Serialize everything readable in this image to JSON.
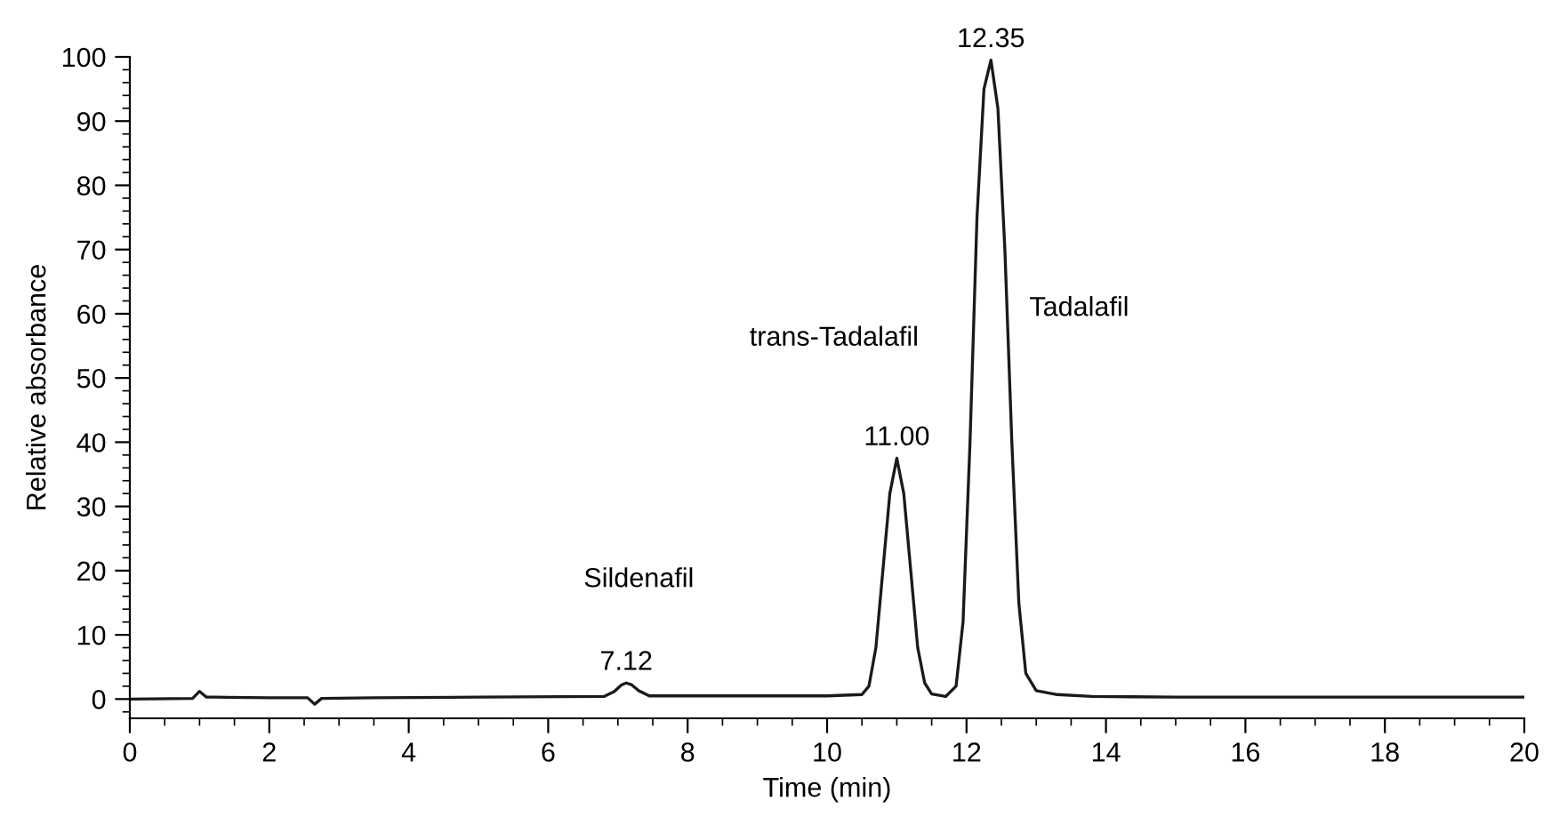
{
  "chart_data": {
    "type": "line",
    "xlabel": "Time (min)",
    "ylabel": "Relative absorbance",
    "xlim": [
      0,
      20
    ],
    "ylim": [
      -3,
      100
    ],
    "xticks": [
      0,
      2,
      4,
      6,
      8,
      10,
      12,
      14,
      16,
      18,
      20
    ],
    "yticks": [
      0,
      10,
      20,
      30,
      40,
      50,
      60,
      70,
      80,
      90,
      100
    ],
    "grid": false,
    "legend": false,
    "series": [
      {
        "color": "#1a1a1a",
        "x": [
          0,
          0.9,
          1.0,
          1.1,
          1.2,
          2.0,
          2.55,
          2.65,
          2.75,
          3.5,
          5,
          6.8,
          6.95,
          7.05,
          7.12,
          7.2,
          7.3,
          7.45,
          8,
          10,
          10.5,
          10.6,
          10.7,
          10.8,
          10.9,
          11.0,
          11.1,
          11.2,
          11.3,
          11.4,
          11.5,
          11.7,
          11.85,
          11.95,
          12.05,
          12.15,
          12.25,
          12.35,
          12.45,
          12.55,
          12.65,
          12.75,
          12.85,
          13.0,
          13.3,
          13.8,
          15,
          20
        ],
        "values": [
          0,
          0.1,
          1.2,
          0.3,
          0.3,
          0.2,
          0.2,
          -0.8,
          0.1,
          0.2,
          0.3,
          0.4,
          1.2,
          2.2,
          2.5,
          2.2,
          1.3,
          0.5,
          0.5,
          0.5,
          0.7,
          2,
          8,
          20,
          32,
          37.5,
          32,
          20,
          8,
          2.5,
          0.8,
          0.4,
          2,
          12,
          40,
          75,
          95,
          99.5,
          92,
          70,
          40,
          15,
          4,
          1.3,
          0.7,
          0.4,
          0.3,
          0.3
        ]
      }
    ],
    "annotations": [
      {
        "text": "7.12",
        "x": 7.12,
        "y": 2.5
      },
      {
        "text": "11.00",
        "x": 11.0,
        "y": 37.5
      },
      {
        "text": "12.35",
        "x": 12.35,
        "y": 99.5
      },
      "Sildenafil",
      "trans-Tadalafil",
      "Tadalafil"
    ]
  }
}
